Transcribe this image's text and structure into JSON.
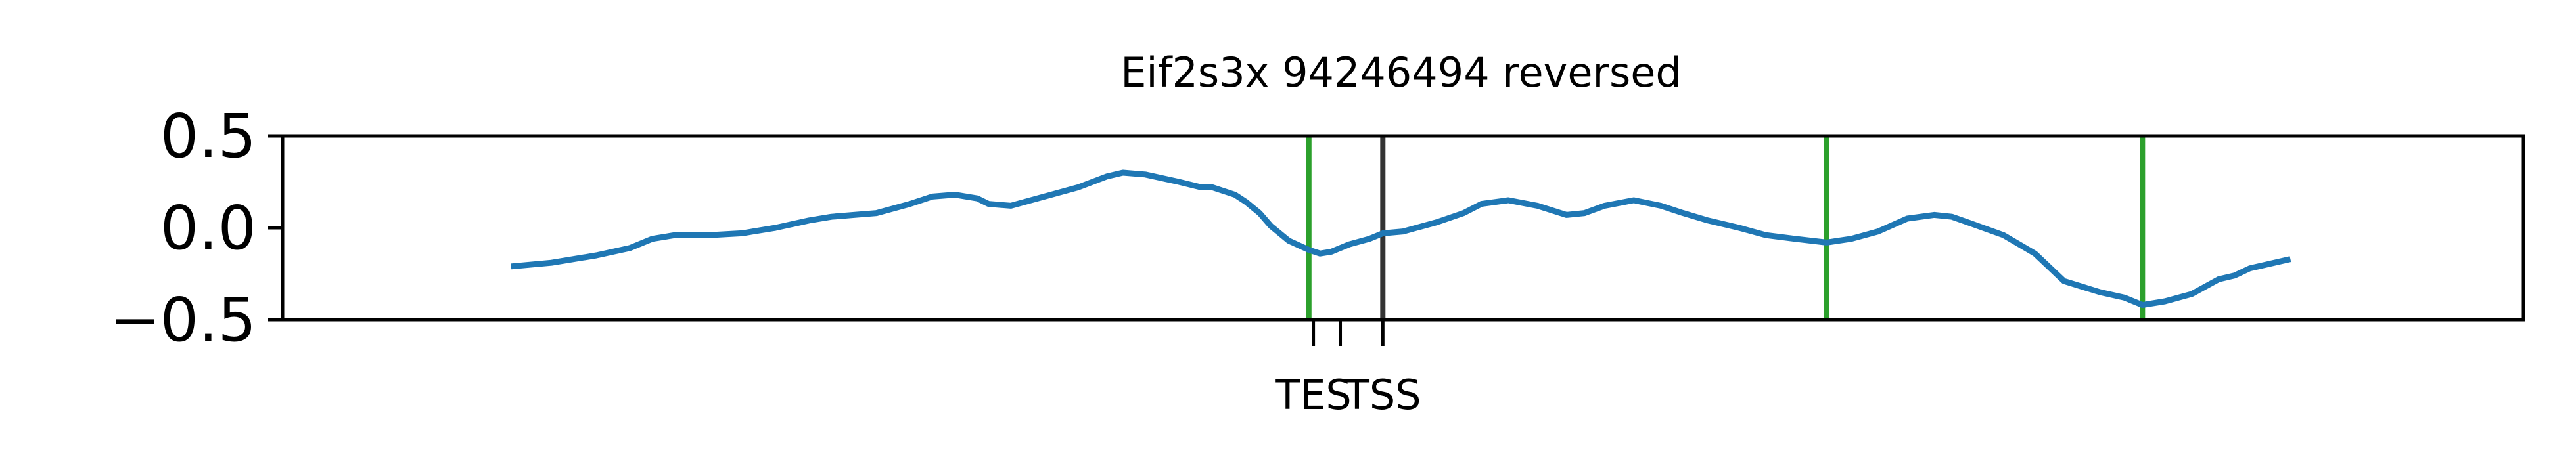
{
  "chart_data": {
    "type": "line",
    "title": "Eif2s3x 94246494 reversed",
    "xlabel": "",
    "ylabel": "",
    "xlim": [
      0,
      1000
    ],
    "ylim": [
      -0.5,
      0.5
    ],
    "y_ticks": [
      {
        "value": 0.5,
        "label": "0.5"
      },
      {
        "value": 0.0,
        "label": "0.0"
      },
      {
        "value": -0.5,
        "label": "−0.5"
      }
    ],
    "x_ticks": [
      {
        "value": 460,
        "label": "TES"
      },
      {
        "value": 472,
        "label": ""
      },
      {
        "value": 491,
        "label": "TSS"
      }
    ],
    "vlines": [
      {
        "x": 458,
        "color": "#2ca02c"
      },
      {
        "x": 491,
        "color": "#333333"
      },
      {
        "x": 689,
        "color": "#2ca02c"
      },
      {
        "x": 830,
        "color": "#2ca02c"
      }
    ],
    "series": [
      {
        "name": "signal",
        "color": "#1f77b4",
        "x": [
          102,
          120,
          140,
          155,
          165,
          175,
          190,
          205,
          220,
          235,
          245,
          255,
          265,
          280,
          290,
          300,
          310,
          315,
          325,
          340,
          355,
          368,
          375,
          385,
          400,
          410,
          415,
          420,
          425,
          430,
          436,
          441,
          449,
          458,
          463,
          468,
          476,
          485,
          491,
          500,
          515,
          527,
          535,
          547,
          560,
          573,
          581,
          590,
          603,
          615,
          625,
          636,
          650,
          662,
          675,
          689,
          700,
          712,
          725,
          737,
          745,
          752,
          768,
          782,
          795,
          811,
          822,
          830,
          840,
          852,
          864,
          871,
          878,
          896
        ],
        "y": [
          -0.21,
          -0.19,
          -0.15,
          -0.11,
          -0.06,
          -0.04,
          -0.04,
          -0.03,
          0.0,
          0.04,
          0.06,
          0.07,
          0.08,
          0.13,
          0.17,
          0.18,
          0.16,
          0.13,
          0.12,
          0.17,
          0.22,
          0.28,
          0.3,
          0.29,
          0.25,
          0.22,
          0.22,
          0.2,
          0.18,
          0.14,
          0.08,
          0.01,
          -0.07,
          -0.12,
          -0.14,
          -0.13,
          -0.09,
          -0.06,
          -0.03,
          -0.02,
          0.03,
          0.08,
          0.13,
          0.15,
          0.12,
          0.07,
          0.08,
          0.12,
          0.15,
          0.12,
          0.08,
          0.04,
          0.0,
          -0.04,
          -0.06,
          -0.08,
          -0.06,
          -0.02,
          0.05,
          0.07,
          0.06,
          0.03,
          -0.04,
          -0.14,
          -0.29,
          -0.35,
          -0.38,
          -0.42,
          -0.4,
          -0.36,
          -0.28,
          -0.26,
          -0.22,
          -0.17
        ]
      }
    ]
  }
}
